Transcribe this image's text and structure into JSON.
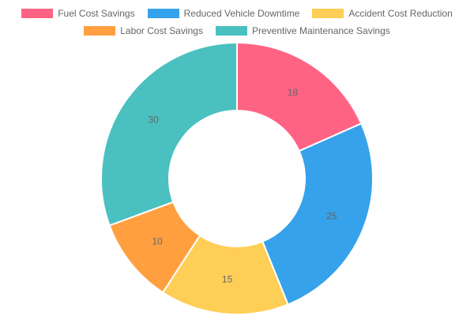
{
  "chart_data": {
    "type": "pie",
    "variant": "doughnut",
    "title": "",
    "categories": [
      "Fuel Cost Savings",
      "Reduced Vehicle Downtime",
      "Accident Cost Reduction",
      "Labor Cost Savings",
      "Preventive Maintenance Savings"
    ],
    "values": [
      18,
      25,
      15,
      10,
      30
    ],
    "colors": [
      "#ff6384",
      "#36a2eb",
      "#ffce56",
      "#ff9f40",
      "#4bc0c0"
    ],
    "legend_position": "top",
    "data_labels": [
      "18",
      "25",
      "15",
      "10",
      "30"
    ]
  }
}
